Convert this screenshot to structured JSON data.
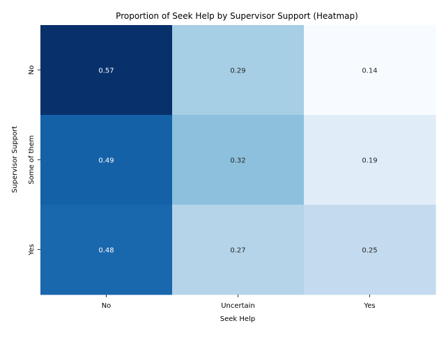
{
  "chart_data": {
    "type": "heatmap",
    "title": "Proportion of Seek Help by Supervisor Support (Heatmap)",
    "xlabel": "Seek Help",
    "ylabel": "Supervisor Support",
    "x_categories": [
      "No",
      "Uncertain",
      "Yes"
    ],
    "y_categories": [
      "No",
      "Some of them",
      "Yes"
    ],
    "values": [
      [
        0.57,
        0.29,
        0.14
      ],
      [
        0.49,
        0.32,
        0.19
      ],
      [
        0.48,
        0.27,
        0.25
      ]
    ],
    "value_labels": [
      [
        "0.57",
        "0.29",
        "0.14"
      ],
      [
        "0.49",
        "0.32",
        "0.19"
      ],
      [
        "0.48",
        "0.27",
        "0.25"
      ]
    ],
    "colormap": "Blues",
    "vmin": 0.14,
    "vmax": 0.57,
    "colorbar": false,
    "grid": false,
    "legend": false
  }
}
